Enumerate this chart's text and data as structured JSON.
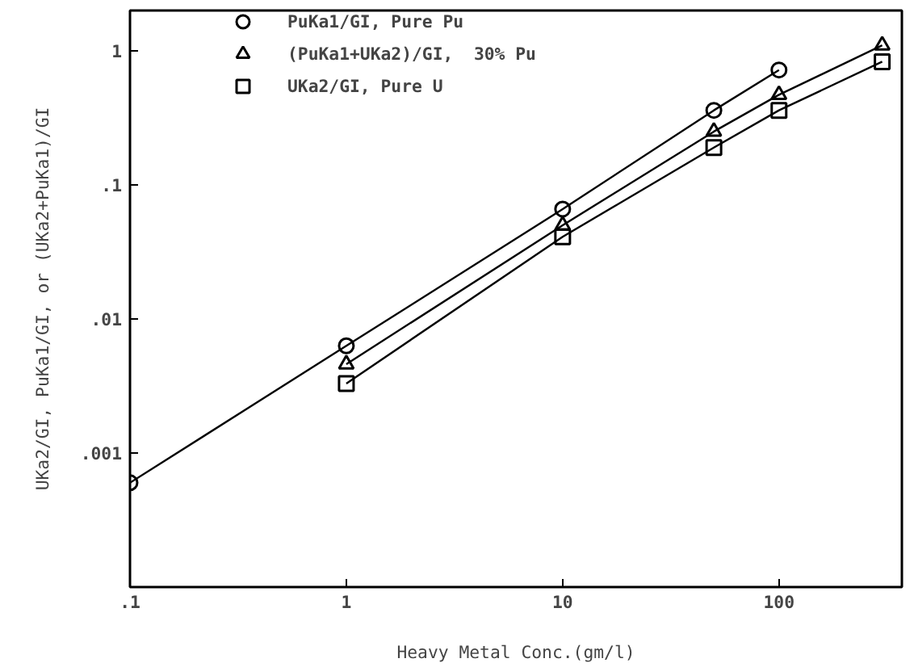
{
  "chart_data": {
    "type": "line",
    "xlabel": "Heavy Metal Conc.(gm/l)",
    "ylabel": "UKa2/GI, PuKa1/GI, or (UKa2+PuKa1)/GI",
    "log": "xy",
    "grid": false,
    "legend": "top left",
    "line_style": "solid",
    "xlim": [
      0.1,
      370
    ],
    "ylim": [
      0.0001,
      2
    ],
    "xticks": [
      {
        "value": 0.1,
        "label": ".1"
      },
      1,
      10,
      100
    ],
    "yticks": [
      {
        "value": 0.001,
        "label": ".001"
      },
      {
        "value": 0.01,
        "label": ".01"
      },
      {
        "value": 0.1,
        "label": ".1"
      },
      1
    ],
    "series": [
      {
        "name": "PuKa1/GI, Pure Pu",
        "color": "#000000",
        "marker": "circle",
        "x": [
          0.1,
          1,
          10,
          50,
          100
        ],
        "values": [
          0.0006,
          0.0063,
          0.066,
          0.36,
          0.72
        ]
      },
      {
        "name": "(PuKa1+UKa2)/GI,  30% Pu",
        "color": "#000000",
        "marker": "triangle",
        "x": [
          1,
          10,
          50,
          100,
          300
        ],
        "values": [
          0.0046,
          0.05,
          0.25,
          0.47,
          1.1
        ]
      },
      {
        "name": "UKa2/GI, Pure U",
        "color": "#000000",
        "marker": "square",
        "x": [
          1,
          10,
          50,
          100,
          300
        ],
        "values": [
          0.0033,
          0.041,
          0.19,
          0.36,
          0.83
        ]
      }
    ]
  }
}
